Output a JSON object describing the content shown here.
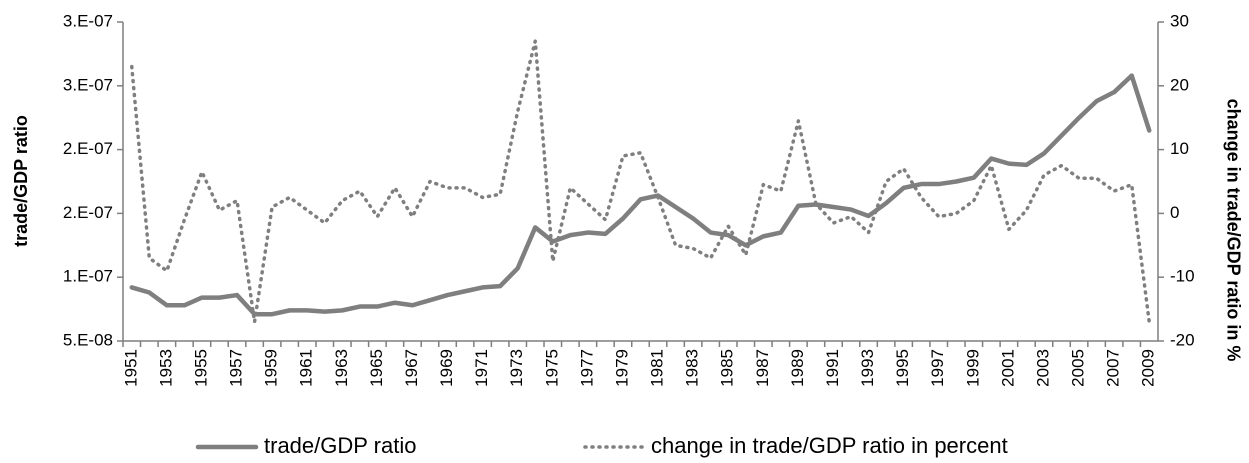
{
  "chart_data": {
    "type": "line",
    "y_label": "trade/GDP ratio",
    "y2_label": "change in trade/GDP ratio in %",
    "categories": [
      "1951",
      null,
      "1953",
      null,
      "1955",
      null,
      "1957",
      null,
      "1959",
      null,
      "1961",
      null,
      "1963",
      null,
      "1965",
      null,
      "1967",
      null,
      "1969",
      null,
      "1971",
      null,
      "1973",
      null,
      "1975",
      null,
      "1977",
      null,
      "1979",
      null,
      "1981",
      null,
      "1983",
      null,
      "1985",
      null,
      "1987",
      null,
      "1989",
      null,
      "1991",
      null,
      "1993",
      null,
      "1995",
      null,
      "1997",
      null,
      "1999",
      null,
      "2001",
      null,
      "2003",
      null,
      "2005",
      null,
      "2007",
      null,
      "2009"
    ],
    "ylim": [
      5e-08,
      3e-07
    ],
    "yticks": [
      {
        "value": 5e-08,
        "label": "5.E-08"
      },
      {
        "value": 1e-07,
        "label": "1.E-07"
      },
      {
        "value": 1.5e-07,
        "label": "2.E-07"
      },
      {
        "value": 2e-07,
        "label": "2.E-07"
      },
      {
        "value": 2.5e-07,
        "label": "3.E-07"
      },
      {
        "value": 3e-07,
        "label": "3.E-07"
      }
    ],
    "y2lim": [
      -20,
      30
    ],
    "y2ticks": [
      -20,
      -10,
      0,
      10,
      20,
      30
    ],
    "grid": false,
    "legend": "bottom",
    "series": [
      {
        "name": "trade/GDP ratio",
        "color": "#7f7f7f",
        "line_style": "solid",
        "values": [
          9.2e-08,
          8.8e-08,
          7.8e-08,
          7.8e-08,
          8.4e-08,
          8.4e-08,
          8.6e-08,
          7.1e-08,
          7.1e-08,
          7.4e-08,
          7.4e-08,
          7.3e-08,
          7.4e-08,
          7.7e-08,
          7.7e-08,
          8e-08,
          7.8e-08,
          8.2e-08,
          8.6e-08,
          8.9e-08,
          9.2e-08,
          9.3e-08,
          1.07e-07,
          1.39e-07,
          1.28e-07,
          1.33e-07,
          1.35e-07,
          1.34e-07,
          1.46e-07,
          1.61e-07,
          1.64e-07,
          1.55e-07,
          1.46e-07,
          1.35e-07,
          1.33e-07,
          1.25e-07,
          1.32e-07,
          1.35e-07,
          1.56e-07,
          1.57e-07,
          1.55e-07,
          1.53e-07,
          1.48e-07,
          1.58e-07,
          1.7e-07,
          1.73e-07,
          1.73e-07,
          1.75e-07,
          1.78e-07,
          1.93e-07,
          1.89e-07,
          1.88e-07,
          1.97e-07,
          2.11e-07,
          2.25e-07,
          2.38e-07,
          2.45e-07,
          2.58e-07,
          2.15e-07
        ]
      },
      {
        "name": "change in trade/GDP ratio in percent",
        "color": "#7f7f7f",
        "line_style": "dotted",
        "axis": "y2",
        "values": [
          23,
          -7,
          -9,
          -1,
          6.5,
          0.5,
          2,
          -17,
          1,
          2.5,
          0.5,
          -1.5,
          2,
          3.5,
          -0.5,
          4,
          -0.5,
          5,
          4,
          4,
          2.5,
          3,
          16,
          27,
          -7.5,
          4,
          1.5,
          -1,
          9,
          9.5,
          2.5,
          -5,
          -5.5,
          -7,
          -2,
          -6.5,
          4.5,
          3.5,
          14.5,
          1.5,
          -1.5,
          -0.5,
          -3,
          5,
          7,
          2.5,
          -0.5,
          0,
          2,
          7.5,
          -2.5,
          0.5,
          6,
          7.5,
          5.5,
          5.5,
          3.5,
          4.5,
          -17
        ]
      }
    ]
  }
}
